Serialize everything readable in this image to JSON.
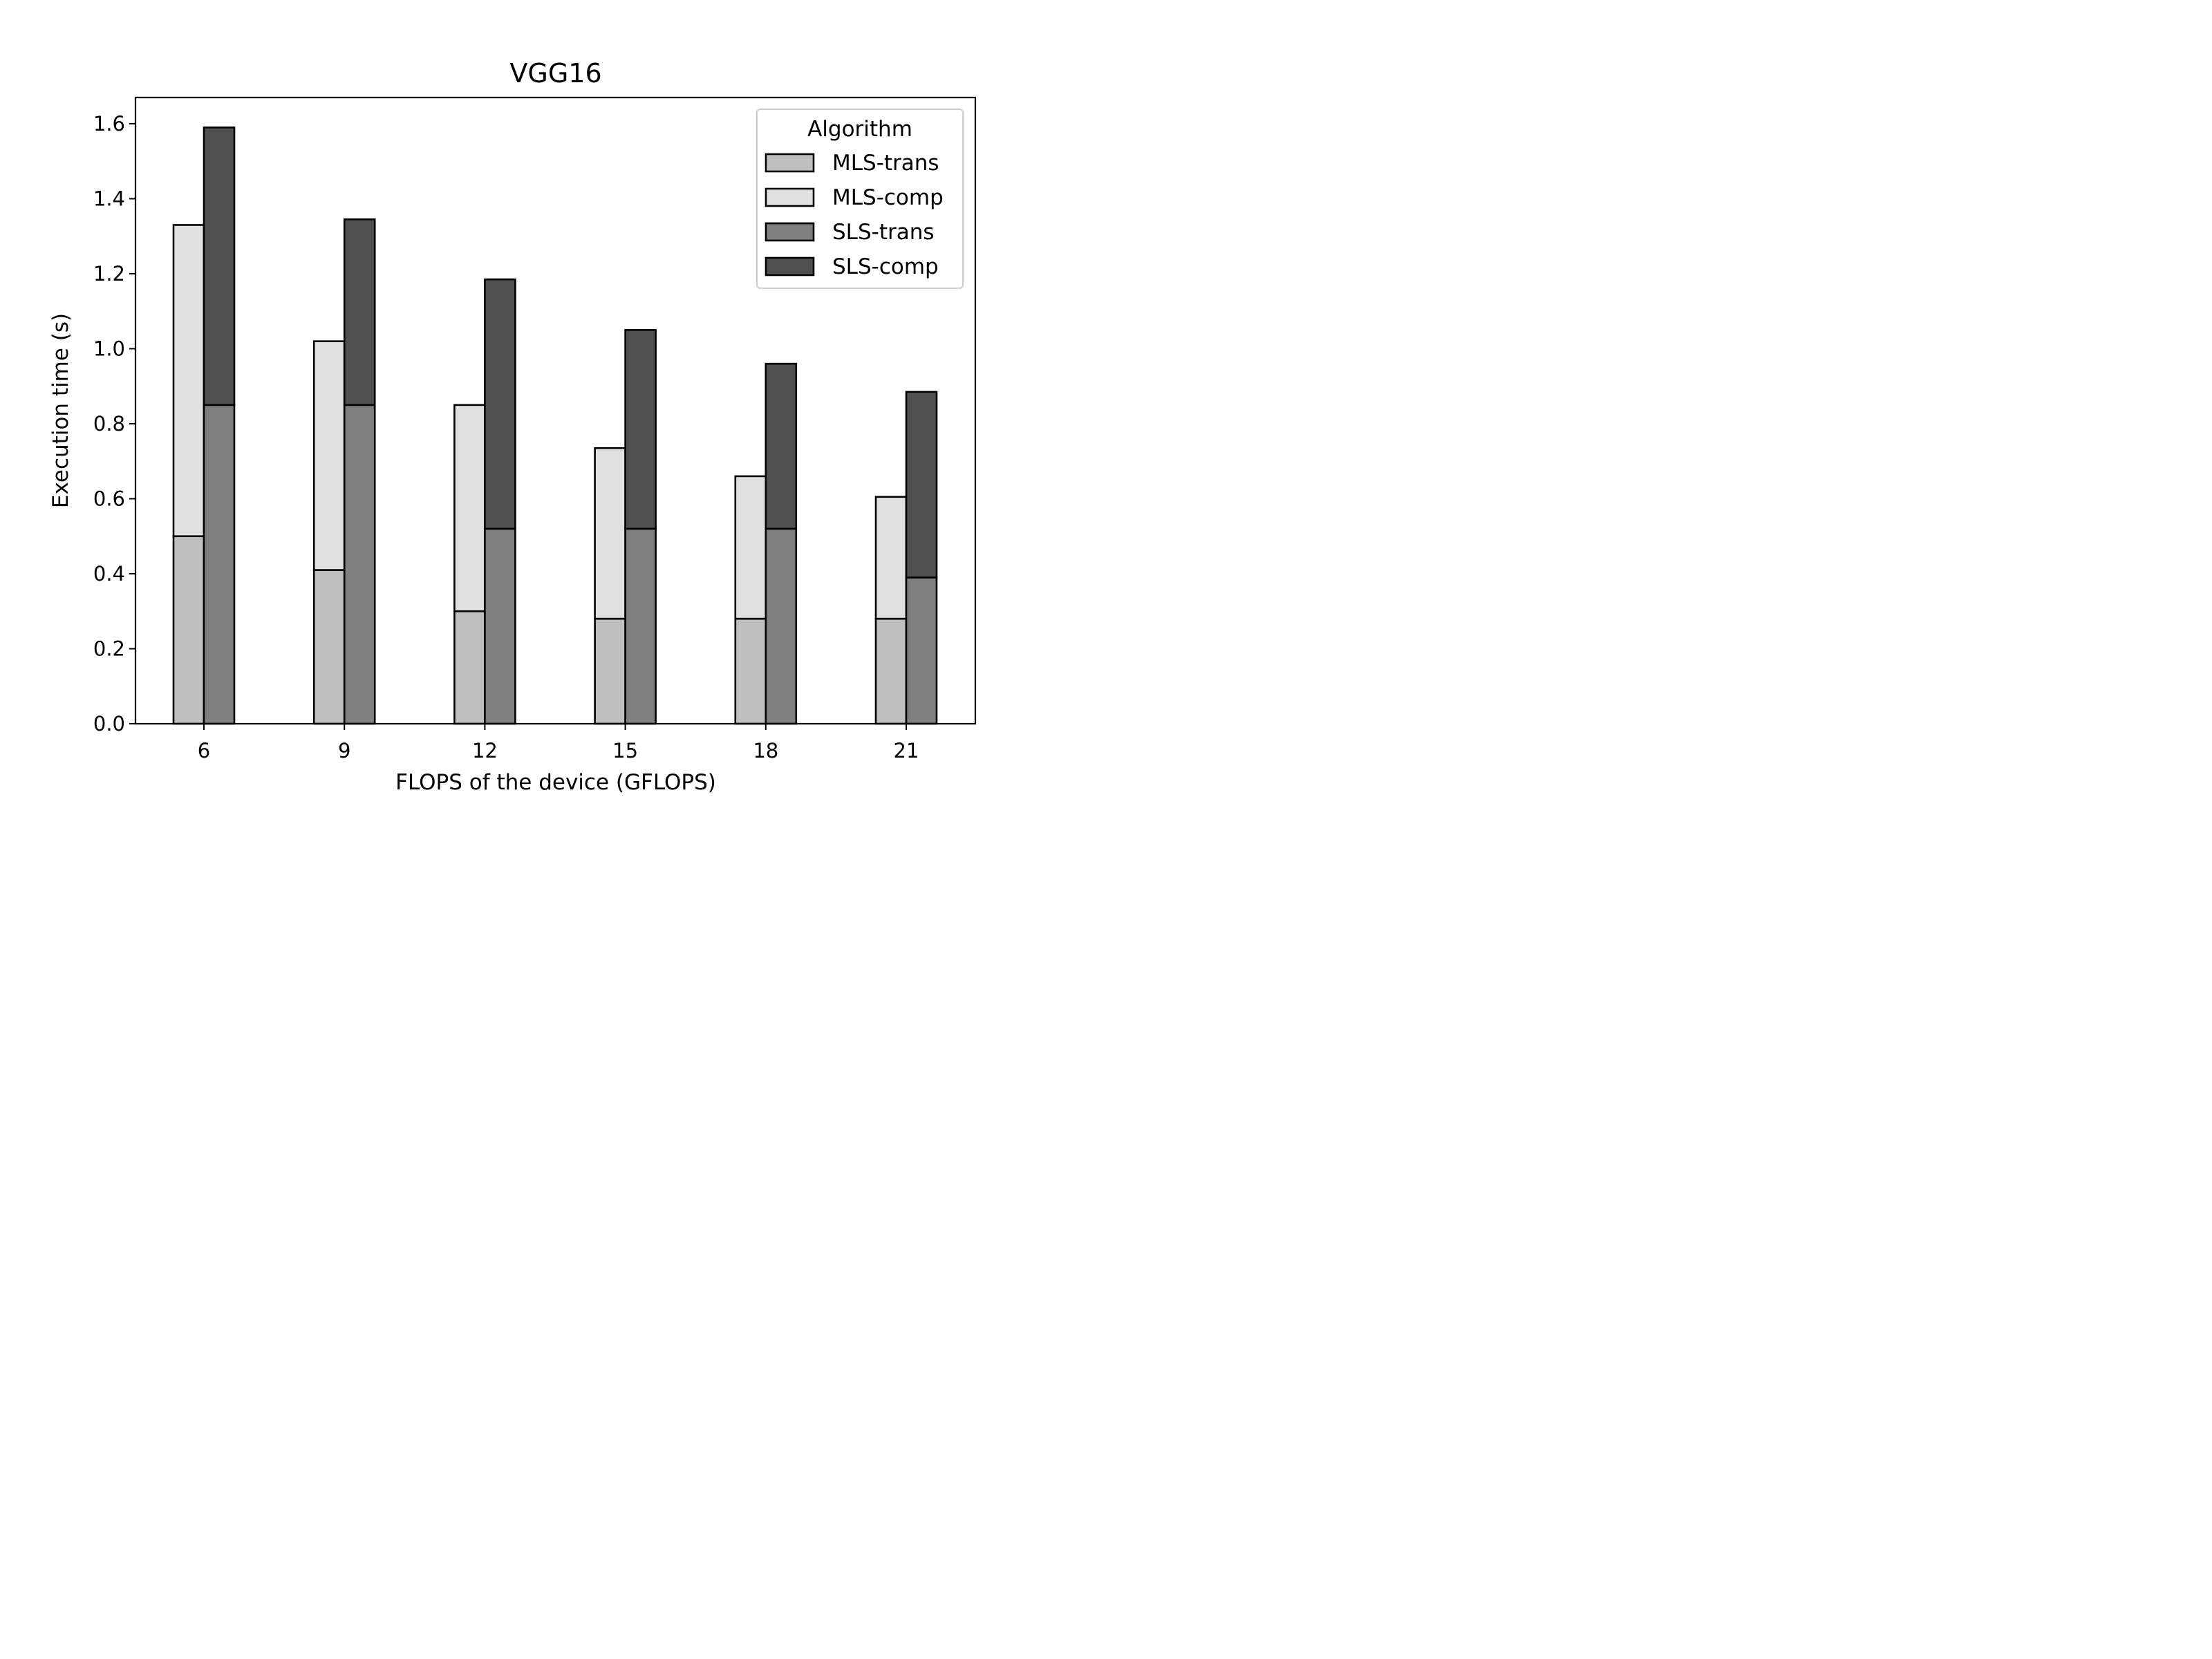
{
  "chart_data": {
    "type": "bar",
    "layout": "grouped-stacked",
    "title": "VGG16",
    "xlabel": "FLOPS of the device (GFLOPS)",
    "ylabel": "Execution time (s)",
    "categories": [
      "6",
      "9",
      "12",
      "15",
      "18",
      "21"
    ],
    "ylim": [
      0,
      1.67
    ],
    "yticks": [
      "0.0",
      "0.2",
      "0.4",
      "0.6",
      "0.8",
      "1.0",
      "1.2",
      "1.4",
      "1.6"
    ],
    "grid": false,
    "legend": {
      "title": "Algorithm",
      "position": "top-right",
      "entries": [
        "MLS-trans",
        "MLS-comp",
        "SLS-trans",
        "SLS-comp"
      ]
    },
    "stacks": [
      {
        "name": "MLS",
        "position": "left",
        "series": [
          {
            "name": "MLS-trans",
            "color": "#bfbfbf",
            "values": [
              0.5,
              0.41,
              0.3,
              0.28,
              0.28,
              0.28
            ]
          },
          {
            "name": "MLS-comp",
            "color": "#e0e0e0",
            "values": [
              0.83,
              0.61,
              0.55,
              0.455,
              0.38,
              0.325
            ]
          }
        ],
        "totals": [
          1.33,
          1.02,
          0.85,
          0.735,
          0.66,
          0.605
        ]
      },
      {
        "name": "SLS",
        "position": "right",
        "series": [
          {
            "name": "SLS-trans",
            "color": "#7f7f7f",
            "values": [
              0.85,
              0.85,
              0.52,
              0.52,
              0.52,
              0.39
            ]
          },
          {
            "name": "SLS-comp",
            "color": "#505050",
            "values": [
              0.74,
              0.495,
              0.665,
              0.53,
              0.44,
              0.495
            ]
          }
        ],
        "totals": [
          1.59,
          1.345,
          1.185,
          1.05,
          0.96,
          0.885
        ]
      }
    ]
  }
}
